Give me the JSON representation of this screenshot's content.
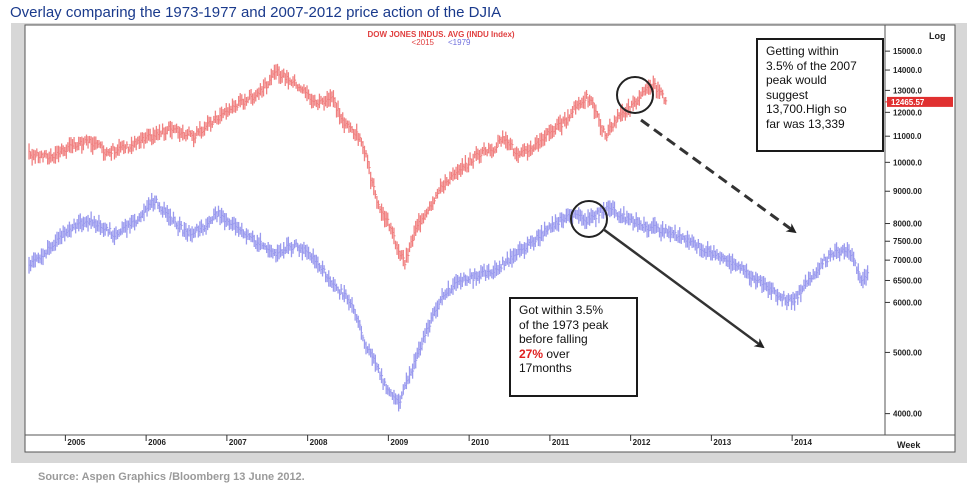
{
  "title": "Overlay comparing the 1973-1977 and 2007-2012 price action of the DJIA",
  "source": "Source: Aspen Graphics /Bloomberg  13 June 2012.",
  "chart_data": {
    "type": "line",
    "title": "DOW JONES INDUS. AVG (INDU Index)",
    "legend": [
      "<2015",
      "<1979"
    ],
    "y_scale": "log",
    "y_label": "Log",
    "x_label": "Week",
    "y_ticks": [
      "15000.0",
      "14000.0",
      "13000.0",
      "12000.0",
      "11000.0",
      "10000.0",
      "9000.00",
      "8000.00",
      "7500.00",
      "7000.00",
      "6500.00",
      "6000.00",
      "5000.00",
      "4000.00"
    ],
    "x_ticks": [
      "2005",
      "2006",
      "2007",
      "2008",
      "2009",
      "2010",
      "2011",
      "2012",
      "2013",
      "2014"
    ],
    "last_value_label": "12465.57",
    "colors": {
      "recent": "#f08080",
      "historical": "#9a9aee",
      "last_value": "#e03030"
    },
    "series": [
      {
        "name": "<2015",
        "x": [
          2004.55,
          2004.8,
          2005.0,
          2005.3,
          2005.5,
          2005.8,
          2006.0,
          2006.3,
          2006.6,
          2006.9,
          2007.1,
          2007.35,
          2007.5,
          2007.62,
          2007.75,
          2007.9,
          2008.1,
          2008.3,
          2008.45,
          2008.55,
          2008.62,
          2008.7,
          2008.8,
          2008.9,
          2009.0,
          2009.1,
          2009.2,
          2009.35,
          2009.5,
          2009.7,
          2009.9,
          2010.1,
          2010.3,
          2010.45,
          2010.6,
          2010.8,
          2011.0,
          2011.2,
          2011.33,
          2011.45,
          2011.55,
          2011.63,
          2011.7,
          2011.8,
          2011.9,
          2012.0,
          2012.1,
          2012.2,
          2012.3,
          2012.4,
          2012.45
        ],
        "values": [
          10300,
          10200,
          10500,
          10800,
          10400,
          10600,
          10900,
          11300,
          11000,
          11800,
          12300,
          12800,
          13300,
          13900,
          13600,
          13200,
          12400,
          12700,
          11500,
          11300,
          11000,
          10500,
          9200,
          8400,
          8000,
          7400,
          6900,
          7900,
          8500,
          9300,
          9700,
          10300,
          10500,
          11000,
          10200,
          10600,
          11200,
          11600,
          12300,
          12700,
          12200,
          11400,
          11000,
          11600,
          12000,
          12200,
          12600,
          13000,
          13200,
          12700,
          12450
        ]
      },
      {
        "name": "<1979",
        "x": [
          2004.55,
          2004.8,
          2005.0,
          2005.3,
          2005.6,
          2005.85,
          2006.1,
          2006.3,
          2006.5,
          2006.7,
          2006.9,
          2007.1,
          2007.35,
          2007.6,
          2007.85,
          2008.1,
          2008.3,
          2008.5,
          2008.6,
          2008.7,
          2008.8,
          2008.9,
          2009.0,
          2009.15,
          2009.35,
          2009.6,
          2009.85,
          2010.1,
          2010.35,
          2010.55,
          2010.8,
          2011.05,
          2011.3,
          2011.45,
          2011.55,
          2011.7,
          2011.9,
          2012.2,
          2012.45,
          2012.7,
          2013.0,
          2013.3,
          2013.5,
          2013.65,
          2013.8,
          2014.0,
          2014.2,
          2014.4,
          2014.55,
          2014.7,
          2014.85,
          2014.95
        ],
        "values": [
          6900,
          7300,
          7800,
          8100,
          7700,
          8000,
          8700,
          8200,
          7700,
          7900,
          8300,
          7900,
          7500,
          7200,
          7400,
          7000,
          6400,
          6100,
          5700,
          5200,
          4900,
          4600,
          4300,
          4200,
          4900,
          5900,
          6500,
          6600,
          6800,
          7100,
          7500,
          8000,
          8300,
          8100,
          8200,
          8500,
          8200,
          7900,
          7800,
          7500,
          7200,
          6900,
          6600,
          6400,
          6200,
          6000,
          6500,
          7000,
          7200,
          7300,
          6500,
          6700
        ]
      }
    ],
    "annotations": [
      {
        "lines": [
          "Getting within",
          "3.5% of the 2007",
          "peak would",
          "suggest",
          "13,700.High so",
          "far was 13,339"
        ]
      },
      {
        "lines": [
          "Got within 3.5%",
          "of the 1973 peak",
          "before falling"
        ],
        "highlight": "27%",
        "tail": " over",
        "last": "17months"
      }
    ]
  }
}
